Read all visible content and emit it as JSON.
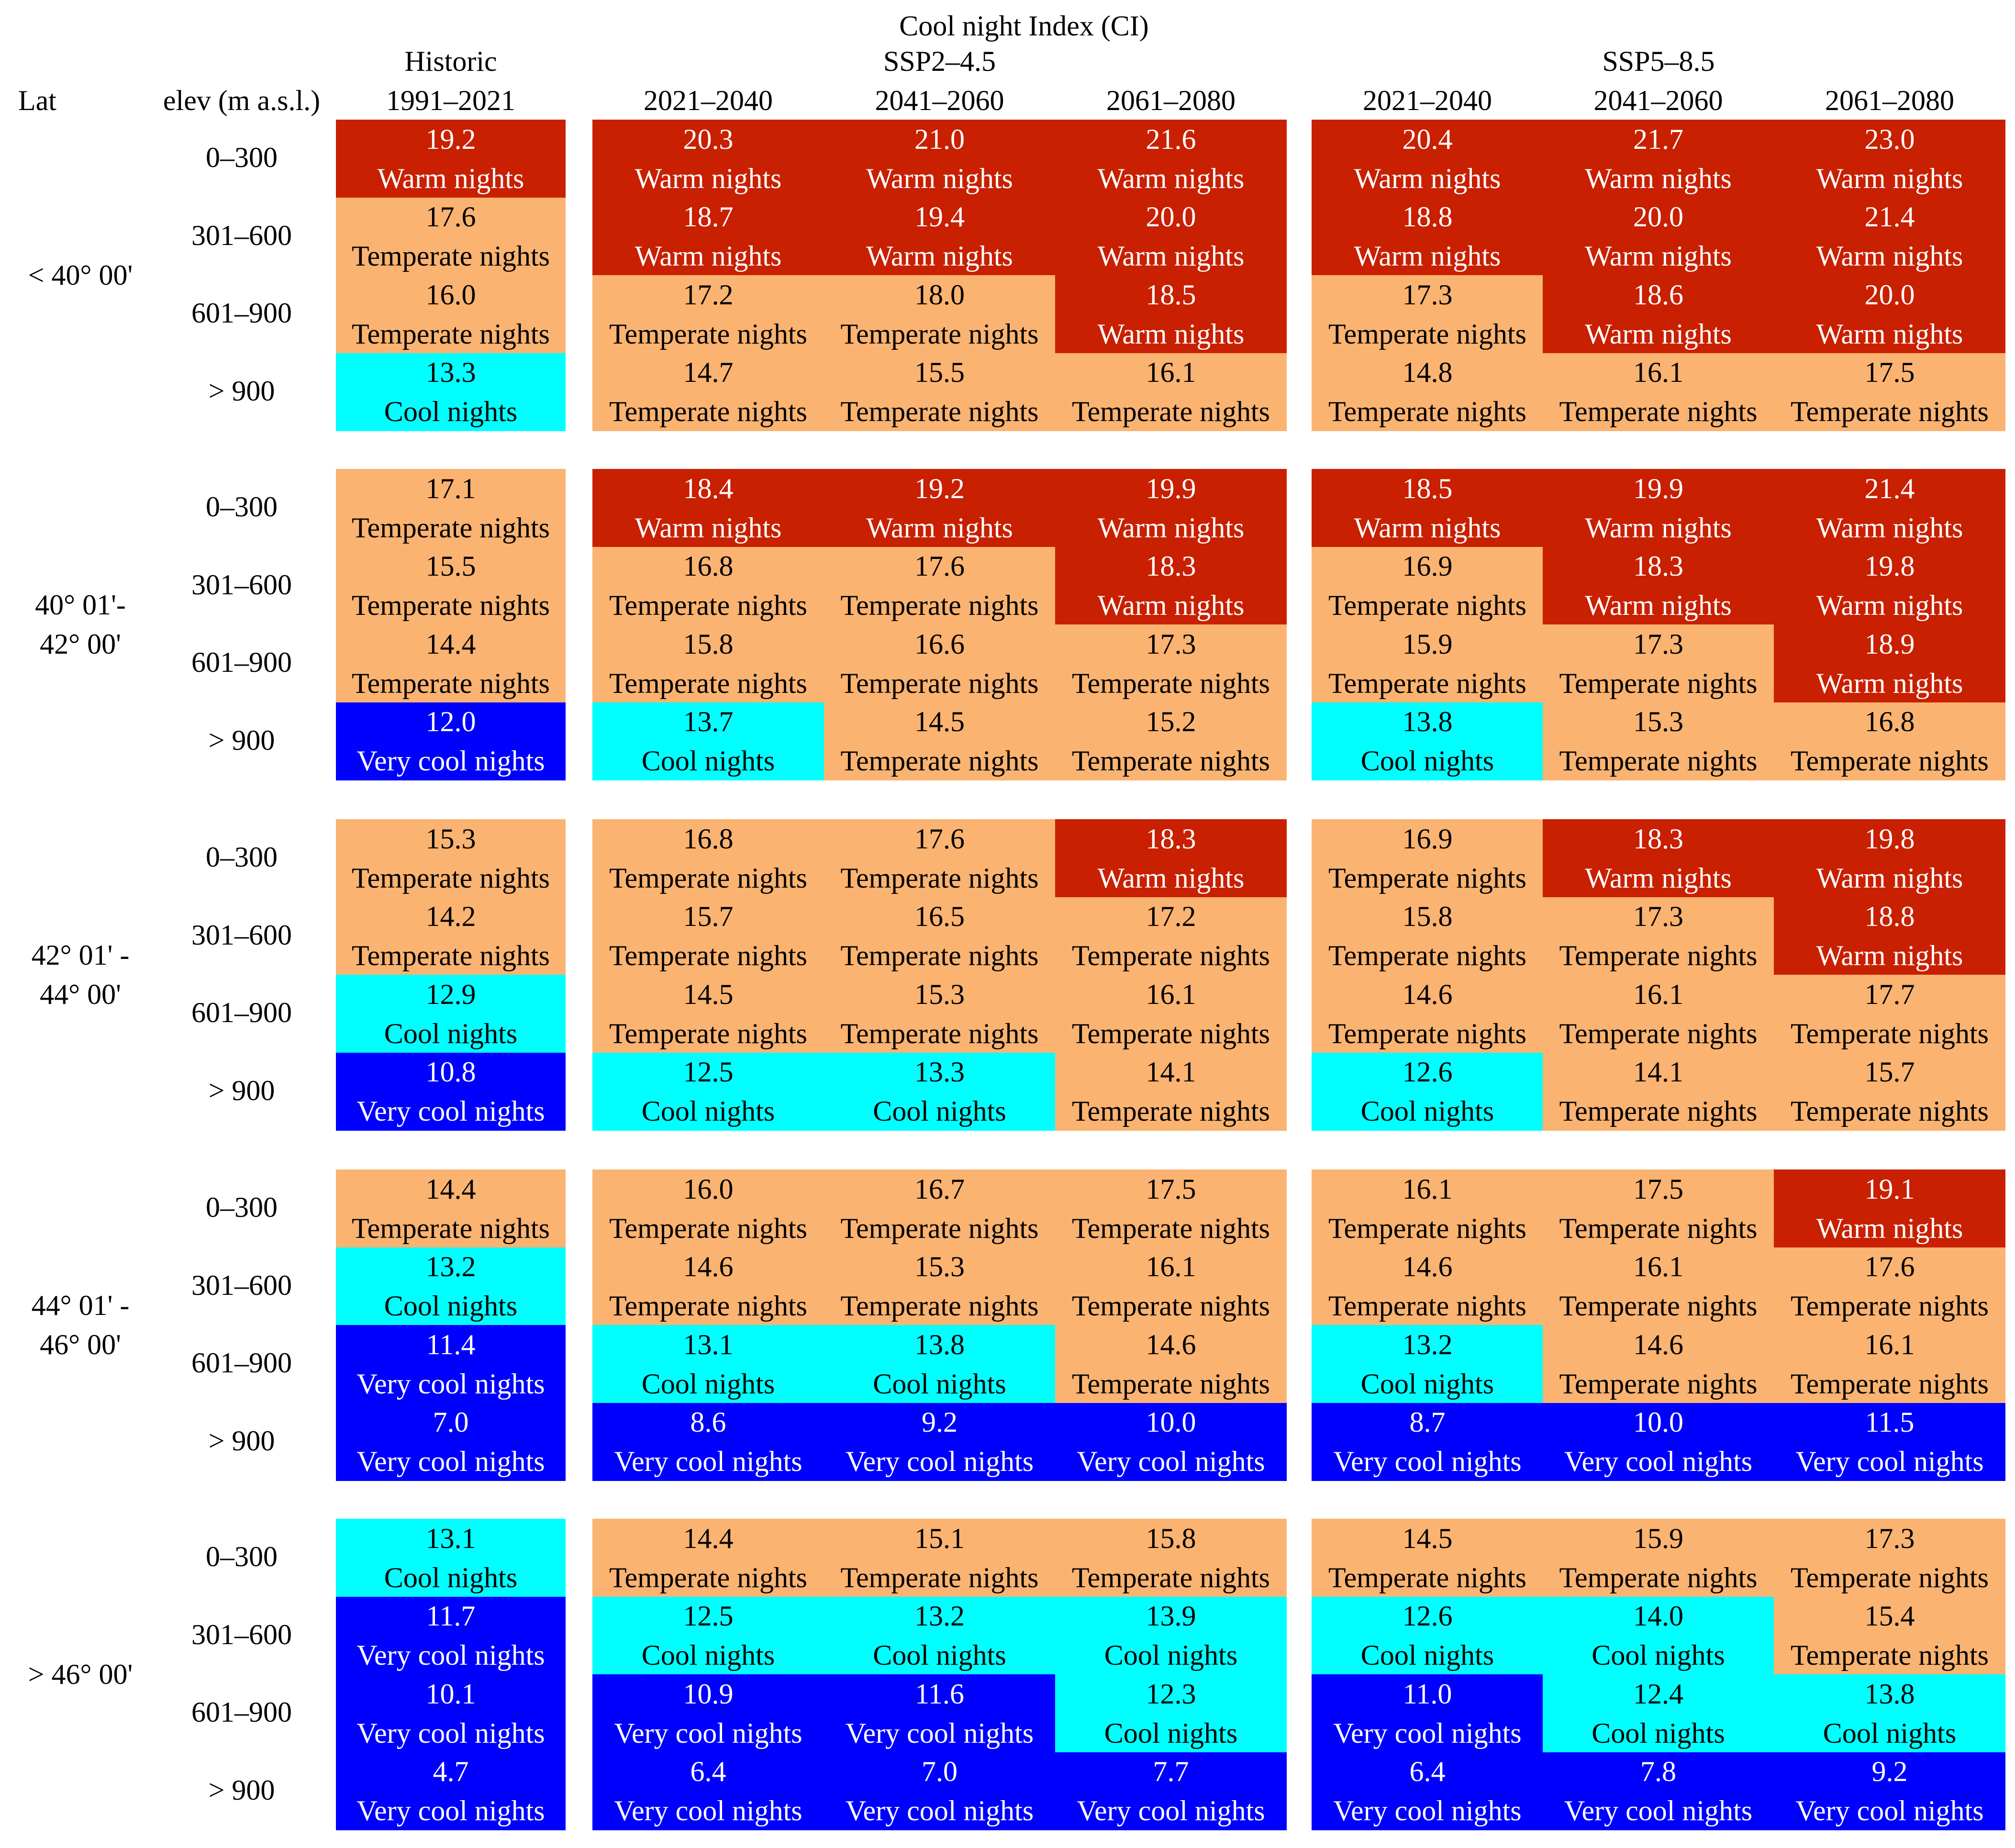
{
  "chart_data": {
    "type": "table",
    "title": "Cool night Index (CI)",
    "row_header_lat": "Lat",
    "row_header_elev": "elev (m a.s.l.)",
    "colors": {
      "Warm nights": "#C82000",
      "Temperate nights": "#FAB371",
      "Cool nights": "#00FFFF",
      "Very cool nights": "#0000FF"
    },
    "text_colors": {
      "Warm nights": "#FFFFFF",
      "Temperate nights": "#000000",
      "Cool nights": "#000000",
      "Very cool nights": "#FFFFFF"
    },
    "scenario_groups": [
      {
        "name": "Historic",
        "periods": [
          "1991–2021"
        ]
      },
      {
        "name": "SSP2–4.5",
        "periods": [
          "2021–2040",
          "2041–2060",
          "2061–2080"
        ]
      },
      {
        "name": "SSP5–8.5",
        "periods": [
          "2021–2040",
          "2041–2060",
          "2061–2080"
        ]
      }
    ],
    "lat_bands": [
      {
        "label": [
          "< 40° 00'"
        ],
        "rows": [
          {
            "elev": "0–300",
            "values": [
              19.2,
              20.3,
              21.0,
              21.6,
              20.4,
              21.7,
              23.0
            ],
            "classes": [
              "Warm nights",
              "Warm nights",
              "Warm nights",
              "Warm nights",
              "Warm nights",
              "Warm nights",
              "Warm nights"
            ]
          },
          {
            "elev": "301–600",
            "values": [
              17.6,
              18.7,
              19.4,
              20.0,
              18.8,
              20.0,
              21.4
            ],
            "classes": [
              "Temperate nights",
              "Warm nights",
              "Warm nights",
              "Warm nights",
              "Warm nights",
              "Warm nights",
              "Warm nights"
            ]
          },
          {
            "elev": "601–900",
            "values": [
              16.0,
              17.2,
              18.0,
              18.5,
              17.3,
              18.6,
              20.0
            ],
            "classes": [
              "Temperate nights",
              "Temperate nights",
              "Temperate nights",
              "Warm nights",
              "Temperate nights",
              "Warm nights",
              "Warm nights"
            ]
          },
          {
            "elev": "> 900",
            "values": [
              13.3,
              14.7,
              15.5,
              16.1,
              14.8,
              16.1,
              17.5
            ],
            "classes": [
              "Cool nights",
              "Temperate nights",
              "Temperate nights",
              "Temperate nights",
              "Temperate nights",
              "Temperate nights",
              "Temperate nights"
            ]
          }
        ]
      },
      {
        "label": [
          "40° 01'-",
          "42° 00'"
        ],
        "rows": [
          {
            "elev": "0–300",
            "values": [
              17.1,
              18.4,
              19.2,
              19.9,
              18.5,
              19.9,
              21.4
            ],
            "classes": [
              "Temperate nights",
              "Warm nights",
              "Warm nights",
              "Warm nights",
              "Warm nights",
              "Warm nights",
              "Warm nights"
            ]
          },
          {
            "elev": "301–600",
            "values": [
              15.5,
              16.8,
              17.6,
              18.3,
              16.9,
              18.3,
              19.8
            ],
            "classes": [
              "Temperate nights",
              "Temperate nights",
              "Temperate nights",
              "Warm nights",
              "Temperate nights",
              "Warm nights",
              "Warm nights"
            ]
          },
          {
            "elev": "601–900",
            "values": [
              14.4,
              15.8,
              16.6,
              17.3,
              15.9,
              17.3,
              18.9
            ],
            "classes": [
              "Temperate nights",
              "Temperate nights",
              "Temperate nights",
              "Temperate nights",
              "Temperate nights",
              "Temperate nights",
              "Warm nights"
            ]
          },
          {
            "elev": "> 900",
            "values": [
              12.0,
              13.7,
              14.5,
              15.2,
              13.8,
              15.3,
              16.8
            ],
            "classes": [
              "Very cool nights",
              "Cool nights",
              "Temperate nights",
              "Temperate nights",
              "Cool nights",
              "Temperate nights",
              "Temperate nights"
            ]
          }
        ]
      },
      {
        "label": [
          "42° 01' -",
          "44° 00'"
        ],
        "rows": [
          {
            "elev": "0–300",
            "values": [
              15.3,
              16.8,
              17.6,
              18.3,
              16.9,
              18.3,
              19.8
            ],
            "classes": [
              "Temperate nights",
              "Temperate nights",
              "Temperate nights",
              "Warm nights",
              "Temperate nights",
              "Warm nights",
              "Warm nights"
            ]
          },
          {
            "elev": "301–600",
            "values": [
              14.2,
              15.7,
              16.5,
              17.2,
              15.8,
              17.3,
              18.8
            ],
            "classes": [
              "Temperate nights",
              "Temperate nights",
              "Temperate nights",
              "Temperate nights",
              "Temperate nights",
              "Temperate nights",
              "Warm nights"
            ]
          },
          {
            "elev": "601–900",
            "values": [
              12.9,
              14.5,
              15.3,
              16.1,
              14.6,
              16.1,
              17.7
            ],
            "classes": [
              "Cool nights",
              "Temperate nights",
              "Temperate nights",
              "Temperate nights",
              "Temperate nights",
              "Temperate nights",
              "Temperate nights"
            ]
          },
          {
            "elev": "> 900",
            "values": [
              10.8,
              12.5,
              13.3,
              14.1,
              12.6,
              14.1,
              15.7
            ],
            "classes": [
              "Very cool nights",
              "Cool nights",
              "Cool nights",
              "Temperate nights",
              "Cool nights",
              "Temperate nights",
              "Temperate nights"
            ]
          }
        ]
      },
      {
        "label": [
          "44° 01' -",
          "46° 00'"
        ],
        "rows": [
          {
            "elev": "0–300",
            "values": [
              14.4,
              16.0,
              16.7,
              17.5,
              16.1,
              17.5,
              19.1
            ],
            "classes": [
              "Temperate nights",
              "Temperate nights",
              "Temperate nights",
              "Temperate nights",
              "Temperate nights",
              "Temperate nights",
              "Warm nights"
            ]
          },
          {
            "elev": "301–600",
            "values": [
              13.2,
              14.6,
              15.3,
              16.1,
              14.6,
              16.1,
              17.6
            ],
            "classes": [
              "Cool nights",
              "Temperate nights",
              "Temperate nights",
              "Temperate nights",
              "Temperate nights",
              "Temperate nights",
              "Temperate nights"
            ]
          },
          {
            "elev": "601–900",
            "values": [
              11.4,
              13.1,
              13.8,
              14.6,
              13.2,
              14.6,
              16.1
            ],
            "classes": [
              "Very cool nights",
              "Cool nights",
              "Cool nights",
              "Temperate nights",
              "Cool nights",
              "Temperate nights",
              "Temperate nights"
            ]
          },
          {
            "elev": "> 900",
            "values": [
              7.0,
              8.6,
              9.2,
              10.0,
              8.7,
              10.0,
              11.5
            ],
            "classes": [
              "Very cool nights",
              "Very cool nights",
              "Very cool nights",
              "Very cool nights",
              "Very cool nights",
              "Very cool nights",
              "Very cool nights"
            ]
          }
        ]
      },
      {
        "label": [
          "> 46° 00'"
        ],
        "rows": [
          {
            "elev": "0–300",
            "values": [
              13.1,
              14.4,
              15.1,
              15.8,
              14.5,
              15.9,
              17.3
            ],
            "classes": [
              "Cool nights",
              "Temperate nights",
              "Temperate nights",
              "Temperate nights",
              "Temperate nights",
              "Temperate nights",
              "Temperate nights"
            ]
          },
          {
            "elev": "301–600",
            "values": [
              11.7,
              12.5,
              13.2,
              13.9,
              12.6,
              14.0,
              15.4
            ],
            "classes": [
              "Very cool nights",
              "Cool nights",
              "Cool nights",
              "Cool nights",
              "Cool nights",
              "Cool nights",
              "Temperate nights"
            ]
          },
          {
            "elev": "601–900",
            "values": [
              10.1,
              10.9,
              11.6,
              12.3,
              11.0,
              12.4,
              13.8
            ],
            "classes": [
              "Very cool nights",
              "Very cool nights",
              "Very cool nights",
              "Cool nights",
              "Very cool nights",
              "Cool nights",
              "Cool nights"
            ]
          },
          {
            "elev": "> 900",
            "values": [
              4.7,
              6.4,
              7.0,
              7.7,
              6.4,
              7.8,
              9.2
            ],
            "classes": [
              "Very cool nights",
              "Very cool nights",
              "Very cool nights",
              "Very cool nights",
              "Very cool nights",
              "Very cool nights",
              "Very cool nights"
            ]
          }
        ]
      }
    ]
  }
}
